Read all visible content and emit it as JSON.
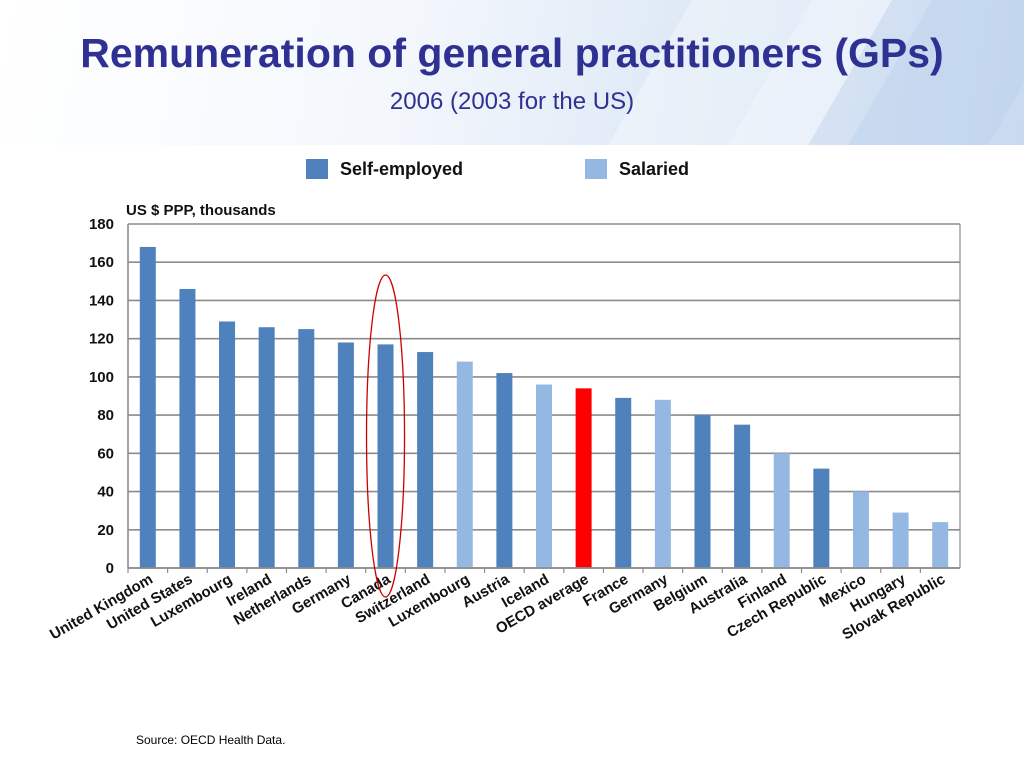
{
  "header": {
    "title": "Remuneration of general practitioners (GPs)",
    "subtitle": "2006 (2003 for the US)"
  },
  "source": "Source: OECD Health Data.",
  "colors": {
    "self_employed": "#4f81bd",
    "salaried": "#95b8e3",
    "highlight": "#ff0000",
    "circle": "#cc0000",
    "title": "#2e3192"
  },
  "chart_data": {
    "type": "bar",
    "ylabel": "US $ PPP, thousands",
    "xlabel": "",
    "ylim": [
      0,
      180
    ],
    "yticks": [
      0,
      20,
      40,
      60,
      80,
      100,
      120,
      140,
      160,
      180
    ],
    "grid": true,
    "legend": {
      "placement": "top",
      "entries": [
        {
          "label": "Self-employed",
          "color": "#4f81bd"
        },
        {
          "label": "Salaried",
          "color": "#95b8e3"
        }
      ]
    },
    "categories": [
      "United Kingdom",
      "United States",
      "Luxembourg",
      "Ireland",
      "Netherlands",
      "Germany",
      "Canada",
      "Switzerland",
      "Luxembourg",
      "Austria",
      "Iceland",
      "OECD average",
      "France",
      "Germany",
      "Belgium",
      "Australia",
      "Finland",
      "Czech Republic",
      "Mexico",
      "Hungary",
      "Slovak Republic"
    ],
    "values": [
      168,
      146,
      129,
      126,
      125,
      118,
      117,
      113,
      108,
      102,
      96,
      94,
      89,
      88,
      80,
      75,
      60,
      52,
      40,
      29,
      24
    ],
    "bar_types": [
      "self-employed",
      "self-employed",
      "self-employed",
      "self-employed",
      "self-employed",
      "self-employed",
      "self-employed",
      "self-employed",
      "salaried",
      "self-employed",
      "salaried",
      "average",
      "self-employed",
      "salaried",
      "self-employed",
      "self-employed",
      "salaried",
      "self-employed",
      "salaried",
      "salaried",
      "salaried"
    ],
    "annotations": [
      {
        "type": "ellipse",
        "category": "Canada",
        "color": "#cc0000"
      }
    ]
  }
}
